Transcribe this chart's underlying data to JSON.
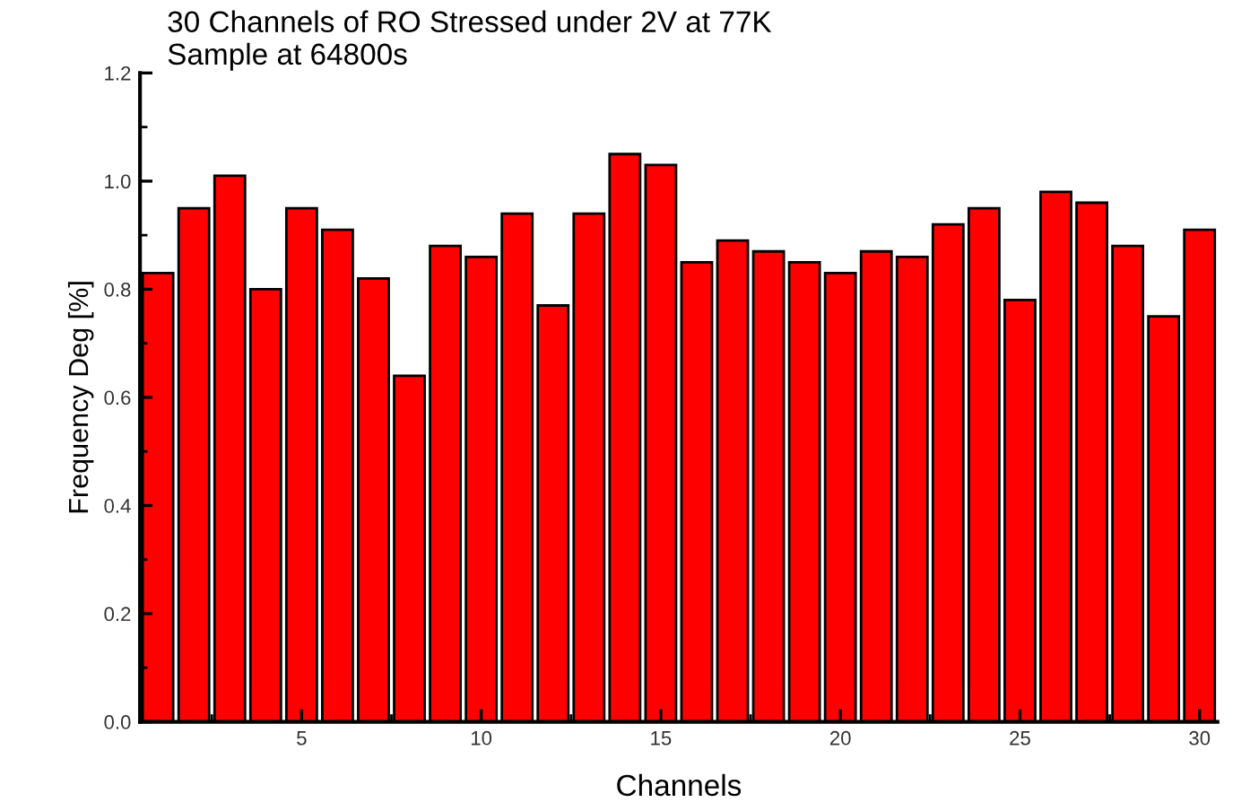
{
  "chart_data": {
    "type": "bar",
    "title": "30 Channels of RO Stressed under 2V at 77K",
    "subtitle": "Sample at 64800s",
    "xlabel": "Channels",
    "ylabel": "Frequency Deg [%]",
    "x": [
      1,
      2,
      3,
      4,
      5,
      6,
      7,
      8,
      9,
      10,
      11,
      12,
      13,
      14,
      15,
      16,
      17,
      18,
      19,
      20,
      21,
      22,
      23,
      24,
      25,
      26,
      27,
      28,
      29,
      30
    ],
    "values": [
      0.83,
      0.95,
      1.01,
      0.8,
      0.95,
      0.91,
      0.82,
      0.64,
      0.88,
      0.86,
      0.94,
      0.77,
      0.94,
      1.05,
      1.03,
      0.85,
      0.89,
      0.87,
      0.85,
      0.83,
      0.87,
      0.86,
      0.92,
      0.95,
      0.78,
      0.98,
      0.96,
      0.88,
      0.75,
      0.91
    ],
    "color": "#ff0000",
    "xlim": [
      0.5,
      30.5
    ],
    "ylim": [
      0,
      1.2
    ],
    "xticks": [
      5,
      10,
      15,
      20,
      25,
      30
    ],
    "yticks": [
      {
        "value": 0,
        "label": "0.0"
      },
      {
        "value": 0.2,
        "label": "0.2"
      },
      {
        "value": 0.4,
        "label": "0.4"
      },
      {
        "value": 0.6,
        "label": "0.6"
      },
      {
        "value": 0.8,
        "label": "0.8"
      },
      {
        "value": 1.0,
        "label": "1.0"
      },
      {
        "value": 1.2,
        "label": "1.2"
      }
    ],
    "grid": false,
    "legend": false
  }
}
